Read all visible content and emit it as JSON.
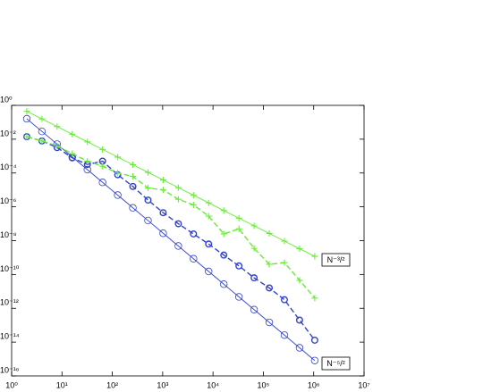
{
  "chart_data": {
    "type": "line",
    "log_x": true,
    "log_y": true,
    "x": [
      2,
      4,
      8,
      16,
      32,
      64,
      128,
      256,
      512,
      1024,
      2048,
      4096,
      8192,
      16384,
      32768,
      65536,
      131072,
      262144,
      524288,
      1048576
    ],
    "series": [
      {
        "color": "#66ee33",
        "marker": "+",
        "dash": false,
        "values": [
          0.447,
          0.158,
          0.0558,
          0.0197,
          0.00698,
          0.00247,
          0.000873,
          0.000308,
          0.000109,
          3.86e-05,
          1.36e-05,
          4.82e-06,
          1.71e-06,
          6.03e-07,
          2.13e-07,
          7.54e-08,
          2.67e-08,
          9.42e-09,
          3.33e-09,
          1.18e-09
        ]
      },
      {
        "color": "#3344cc",
        "marker": "o",
        "dash": false,
        "values": [
          0.162,
          0.0287,
          0.00507,
          0.000896,
          0.000158,
          2.8e-05,
          4.95e-06,
          8.75e-07,
          1.55e-07,
          2.73e-08,
          4.83e-09,
          8.54e-10,
          1.51e-10,
          2.67e-11,
          4.72e-12,
          8.34e-13,
          1.47e-13,
          2.6e-14,
          4.6e-15,
          8.13e-16
        ]
      },
      {
        "color": "#3344cc",
        "marker": "o",
        "dash": true,
        "values": [
          0.014,
          0.0079,
          0.0032,
          0.00079,
          0.00032,
          0.0005,
          7.9e-05,
          1.6e-05,
          2.5e-06,
          4.5e-07,
          1e-07,
          2.5e-08,
          6.3e-09,
          1.4e-09,
          3.2e-10,
          6.3e-11,
          1.6e-11,
          3.2e-12,
          2e-13,
          1.3e-14
        ]
      },
      {
        "color": "#66ee33",
        "marker": "+",
        "dash": true,
        "values": [
          0.014,
          0.0079,
          0.004,
          0.0014,
          0.0005,
          0.00025,
          0.0001,
          6.3e-05,
          1.3e-05,
          1e-05,
          2.8e-06,
          1.3e-06,
          2.8e-07,
          2.5e-08,
          5e-08,
          3.5e-09,
          4e-10,
          5e-10,
          4.5e-11,
          4e-12
        ]
      }
    ],
    "xlim": [
      1,
      10000000
    ],
    "xticks": [
      {
        "value": 1,
        "label": "10⁰"
      },
      {
        "value": 10,
        "label": "10¹"
      },
      {
        "value": 100,
        "label": "10²"
      },
      {
        "value": 1000,
        "label": "10³"
      },
      {
        "value": 10000,
        "label": "10⁴"
      },
      {
        "value": 100000,
        "label": "10⁵"
      },
      {
        "value": 1000000,
        "label": "10⁶"
      },
      {
        "value": 10000000,
        "label": "10⁷"
      }
    ],
    "ylim": [
      1e-16,
      1
    ],
    "yticks": [
      {
        "value": 1,
        "label": "10⁰"
      },
      {
        "value": 0.01,
        "label": "10⁻²"
      },
      {
        "value": 0.0001,
        "label": "10⁻⁴"
      },
      {
        "value": 1e-06,
        "label": "10⁻⁶"
      },
      {
        "value": 1e-08,
        "label": "10⁻⁸"
      },
      {
        "value": 1e-10,
        "label": "10⁻¹⁰"
      },
      {
        "value": 1e-12,
        "label": "10⁻¹²"
      },
      {
        "value": 1e-14,
        "label": "10⁻¹⁴"
      },
      {
        "value": 1e-16,
        "label": "10⁻¹⁶"
      }
    ],
    "annotations": [
      "N⁻³/²",
      "N⁻⁵/²"
    ]
  }
}
